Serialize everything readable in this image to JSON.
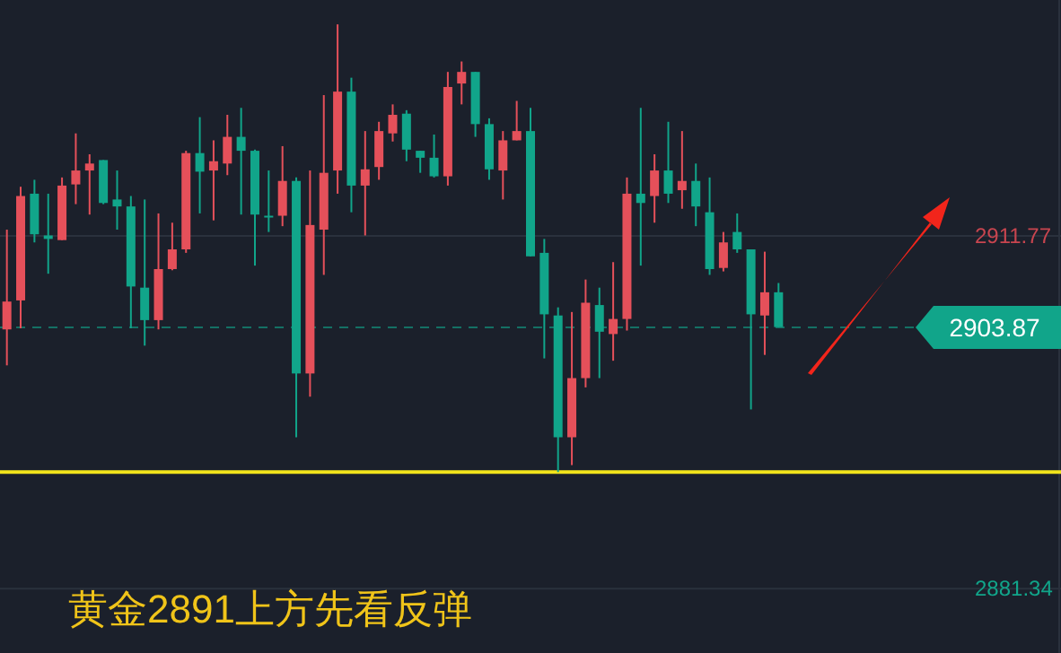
{
  "chart_data": {
    "type": "candlestick",
    "title": "黄金2891上方先看反弹",
    "categories": [
      null,
      null,
      null,
      null,
      null,
      null,
      null,
      null,
      null,
      null,
      null,
      null,
      null,
      null,
      null,
      null,
      null,
      null,
      null,
      null,
      null,
      null,
      null,
      null,
      null,
      null,
      null,
      null,
      null,
      null,
      null,
      null,
      null,
      null,
      null,
      null,
      null,
      null,
      null,
      null,
      null,
      null,
      null,
      null,
      null,
      null,
      null,
      null,
      null,
      null,
      null,
      null,
      null,
      null,
      null,
      null,
      null,
      null,
      null,
      null,
      null,
      null,
      null,
      null,
      null,
      null,
      null,
      null,
      null,
      null,
      null,
      null,
      null,
      null,
      null,
      null,
      null
    ],
    "ohlc": [
      [
        2903.7,
        2912.3,
        2900.6,
        2906.1
      ],
      [
        2906.2,
        2916.0,
        2903.8,
        2915.2
      ],
      [
        2915.4,
        2916.6,
        2911.2,
        2911.9
      ],
      [
        2911.8,
        2915.4,
        2908.5,
        2911.5
      ],
      [
        2911.4,
        2916.8,
        2911.4,
        2916.1
      ],
      [
        2916.2,
        2920.6,
        2914.5,
        2917.4
      ],
      [
        2917.4,
        2918.8,
        2913.6,
        2918.0
      ],
      [
        2918.3,
        2918.3,
        2914.5,
        2914.6
      ],
      [
        2914.9,
        2917.4,
        2912.3,
        2914.3
      ],
      [
        2914.3,
        2915.2,
        2903.8,
        2907.4
      ],
      [
        2907.3,
        2914.9,
        2902.3,
        2904.5
      ],
      [
        2904.5,
        2913.7,
        2903.7,
        2908.9
      ],
      [
        2908.9,
        2912.9,
        2908.8,
        2910.6
      ],
      [
        2910.6,
        2919.1,
        2910.3,
        2918.9
      ],
      [
        2918.9,
        2922.0,
        2913.7,
        2917.3
      ],
      [
        2917.4,
        2920.0,
        2913.1,
        2918.2
      ],
      [
        2918.0,
        2922.2,
        2917.0,
        2920.3
      ],
      [
        2920.3,
        2922.8,
        2913.6,
        2919.1
      ],
      [
        2919.1,
        2919.2,
        2909.2,
        2913.6
      ],
      [
        2913.5,
        2917.4,
        2912.1,
        2913.4
      ],
      [
        2913.5,
        2919.5,
        2912.6,
        2916.5
      ],
      [
        2916.5,
        2916.8,
        2894.4,
        2899.9
      ],
      [
        2899.9,
        2917.4,
        2897.9,
        2912.7
      ],
      [
        2912.3,
        2923.9,
        2908.4,
        2917.2
      ],
      [
        2917.4,
        2930.0,
        2915.4,
        2924.2
      ],
      [
        2924.2,
        2925.4,
        2913.8,
        2916.1
      ],
      [
        2916.1,
        2920.8,
        2911.8,
        2917.5
      ],
      [
        2917.7,
        2921.6,
        2916.6,
        2920.8
      ],
      [
        2920.6,
        2923.1,
        2919.9,
        2922.2
      ],
      [
        2922.3,
        2922.6,
        2918.2,
        2919.2
      ],
      [
        2919.1,
        2919.1,
        2917.2,
        2918.5
      ],
      [
        2918.5,
        2920.5,
        2916.8,
        2916.9
      ],
      [
        2916.9,
        2925.9,
        2916.1,
        2924.6
      ],
      [
        2924.9,
        2926.8,
        2923.1,
        2925.9
      ],
      [
        2925.9,
        2925.9,
        2920.3,
        2921.4
      ],
      [
        2921.4,
        2921.9,
        2916.6,
        2917.5
      ],
      [
        2917.4,
        2920.8,
        2914.9,
        2920.0
      ],
      [
        2920.0,
        2923.4,
        2920.0,
        2920.8
      ],
      [
        2920.8,
        2922.8,
        2910.0,
        2910.0
      ],
      [
        2910.3,
        2911.5,
        2901.2,
        2905.0
      ],
      [
        2904.9,
        2905.6,
        2891.4,
        2894.4
      ],
      [
        2894.4,
        2905.2,
        2892.0,
        2899.5
      ],
      [
        2899.5,
        2908.0,
        2898.7,
        2906.0
      ],
      [
        2905.8,
        2907.3,
        2899.5,
        2903.5
      ],
      [
        2903.3,
        2909.5,
        2901.0,
        2904.6
      ],
      [
        2904.6,
        2916.8,
        2903.6,
        2915.4
      ],
      [
        2915.4,
        2922.8,
        2909.2,
        2914.6
      ],
      [
        2915.2,
        2918.8,
        2912.9,
        2917.4
      ],
      [
        2917.4,
        2921.6,
        2914.6,
        2915.4
      ],
      [
        2915.7,
        2920.8,
        2914.1,
        2916.5
      ],
      [
        2916.5,
        2918.0,
        2912.6,
        2914.3
      ],
      [
        2913.8,
        2916.8,
        2908.4,
        2908.9
      ],
      [
        2909.0,
        2912.1,
        2908.7,
        2911.2
      ],
      [
        2912.1,
        2913.7,
        2910.3,
        2910.6
      ],
      [
        2910.6,
        2910.6,
        2896.8,
        2905.0
      ],
      [
        2904.9,
        2910.4,
        2901.5,
        2906.9
      ],
      [
        2906.9,
        2907.7,
        2903.9,
        2903.9
      ],
      null,
      null,
      null,
      null,
      null,
      null,
      null,
      null,
      null,
      null,
      null,
      null,
      null,
      null,
      null,
      null,
      null,
      null,
      null,
      null
    ],
    "colors": [
      "#e5505a",
      "#e5505a",
      "#11a58a",
      "#11a58a",
      "#e5505a",
      "#e5505a",
      "#e5505a",
      "#11a58a",
      "#11a58a",
      "#11a58a",
      "#11a58a",
      "#e5505a",
      "#e5505a",
      "#e5505a",
      "#11a58a",
      "#e5505a",
      "#e5505a",
      "#11a58a",
      "#11a58a",
      "#11a58a",
      "#e5505a",
      "#11a58a",
      "#e5505a",
      "#e5505a",
      "#e5505a",
      "#11a58a",
      "#e5505a",
      "#e5505a",
      "#e5505a",
      "#11a58a",
      "#11a58a",
      "#11a58a",
      "#e5505a",
      "#e5505a",
      "#11a58a",
      "#11a58a",
      "#e5505a",
      "#e5505a",
      "#11a58a",
      "#11a58a",
      "#11a58a",
      "#e5505a",
      "#e5505a",
      "#11a58a",
      "#e5505a",
      "#e5505a",
      "#11a58a",
      "#e5505a",
      "#11a58a",
      "#e5505a",
      "#11a58a",
      "#11a58a",
      "#e5505a",
      "#11a58a",
      "#11a58a",
      "#e5505a",
      "#11a58a",
      null,
      null,
      null,
      null,
      null,
      null,
      null,
      null,
      null,
      null,
      null,
      null,
      null,
      null,
      null,
      null,
      null,
      null,
      null,
      null
    ],
    "ylim": [
      2875.8,
      2932.1
    ],
    "yticks": [
      2911.77,
      2881.34
    ],
    "grid": "y",
    "ref_lines": [
      {
        "axis": "y",
        "value": 2903.87,
        "label": "2903.87",
        "color": "#11a58a",
        "line_style": "dashed"
      },
      {
        "axis": "y",
        "value": 2891.4,
        "color": "#f2e41c",
        "line_style": "solid"
      }
    ]
  }
}
